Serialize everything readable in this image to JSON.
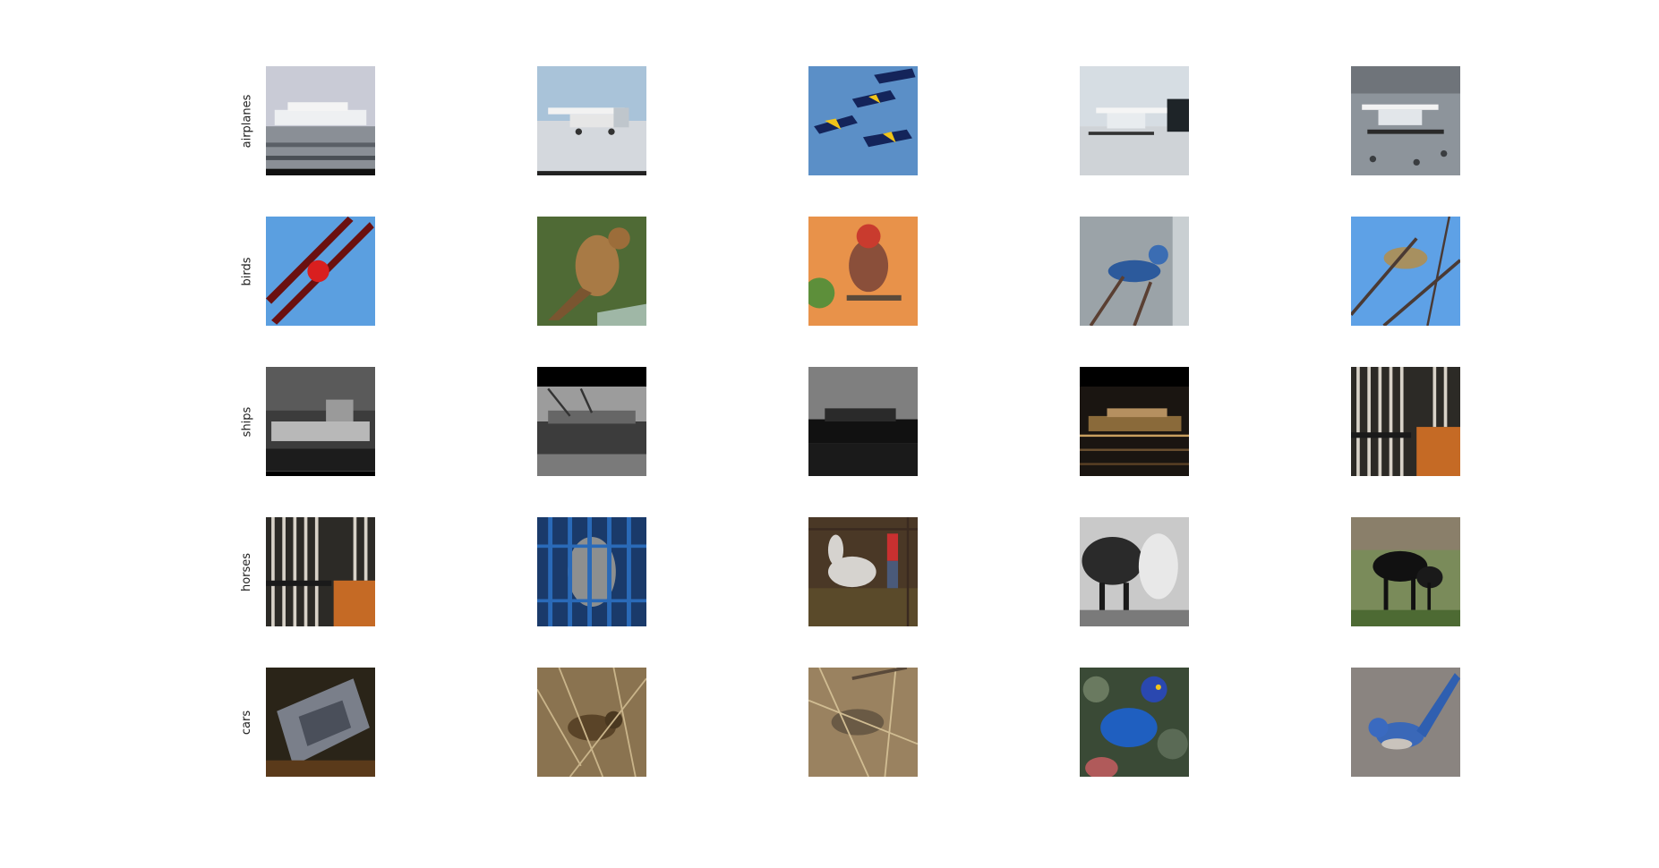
{
  "figure": {
    "row_labels": [
      "airplanes",
      "birds",
      "ships",
      "horses",
      "cars"
    ],
    "cells": [
      [
        "cruise-ship-at-dock",
        "small-white-airplane-on-snow",
        "blue-angels-jets-formation",
        "floatplane-on-water",
        "floatplane-taking-off"
      ],
      [
        "red-biplane-in-sky",
        "brown-robin-on-leaf",
        "house-finch-on-branch",
        "blue-jay-on-branch",
        "bird-in-bare-tree"
      ],
      [
        "grayscale-battleship",
        "grayscale-container-ship",
        "container-ship-dark",
        "cruise-ship-night-lights",
        "horse-behind-stable-bars"
      ],
      [
        "horse-behind-stable-bars-2",
        "owl-in-blue-cage",
        "white-horse-rodeo",
        "grayscale-horses",
        "black-horses-grazing"
      ],
      [
        "overturned-car-wreck",
        "sparrow-in-dry-grass",
        "quail-in-dry-grass",
        "blue-starling",
        "scrub-jay-on-ground"
      ]
    ]
  }
}
